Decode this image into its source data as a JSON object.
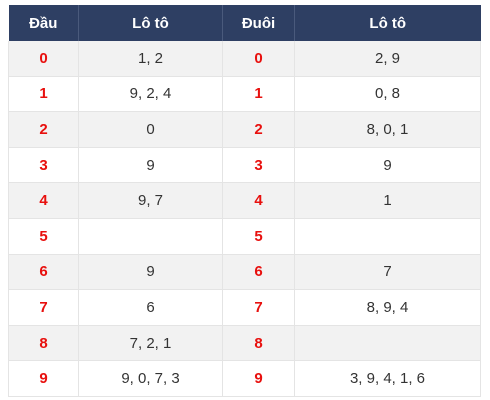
{
  "table": {
    "headers": [
      "Đầu",
      "Lô tô",
      "Đuôi",
      "Lô tô"
    ],
    "rows": [
      {
        "dau": "0",
        "dau_lo": "1, 2",
        "duoi": "0",
        "duoi_lo": "2, 9"
      },
      {
        "dau": "1",
        "dau_lo": "9, 2, 4",
        "duoi": "1",
        "duoi_lo": "0, 8"
      },
      {
        "dau": "2",
        "dau_lo": "0",
        "duoi": "2",
        "duoi_lo": "8, 0, 1"
      },
      {
        "dau": "3",
        "dau_lo": "9",
        "duoi": "3",
        "duoi_lo": "9"
      },
      {
        "dau": "4",
        "dau_lo": "9, 7",
        "duoi": "4",
        "duoi_lo": "1"
      },
      {
        "dau": "5",
        "dau_lo": "",
        "duoi": "5",
        "duoi_lo": ""
      },
      {
        "dau": "6",
        "dau_lo": "9",
        "duoi": "6",
        "duoi_lo": "7"
      },
      {
        "dau": "7",
        "dau_lo": "6",
        "duoi": "7",
        "duoi_lo": "8, 9, 4"
      },
      {
        "dau": "8",
        "dau_lo": "7, 2, 1",
        "duoi": "8",
        "duoi_lo": ""
      },
      {
        "dau": "9",
        "dau_lo": "9, 0, 7, 3",
        "duoi": "9",
        "duoi_lo": "3, 9, 4, 1, 6"
      }
    ]
  },
  "colors": {
    "header_bg": "#2e3f63",
    "header_text": "#ffffff",
    "digit_red": "#e8100e",
    "row_stripe": "#f2f2f2"
  }
}
